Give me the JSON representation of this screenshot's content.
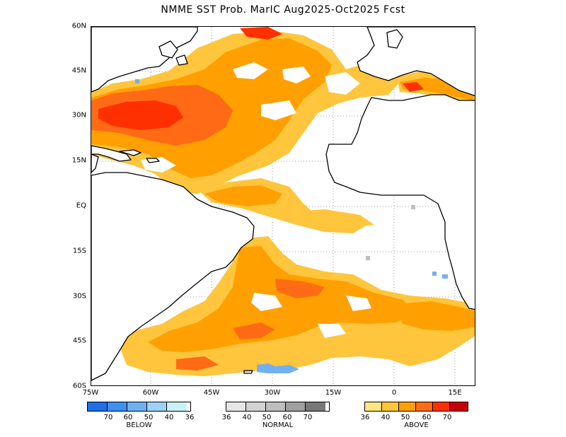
{
  "title": "NMME SST Prob. MarIC  Aug2025-Oct2025 Fcst",
  "y_axis_labels": [
    "60N",
    "45N",
    "30N",
    "15N",
    "EQ",
    "15S",
    "30S",
    "45S",
    "60S"
  ],
  "x_axis_labels": [
    "75W",
    "60W",
    "45W",
    "30W",
    "15W",
    "0",
    "15E"
  ],
  "legend": {
    "below": {
      "caption": "BELOW",
      "ticks": [
        "70",
        "60",
        "50",
        "40",
        "36"
      ],
      "colors": [
        "#1e6fe6",
        "#3d8ff0",
        "#6fb0f5",
        "#9fd0fa",
        "#c8f2f8"
      ]
    },
    "normal": {
      "caption": "NORMAL",
      "ticks": [
        "36",
        "40",
        "50",
        "60",
        "70"
      ],
      "colors": [
        "#e6e6e6",
        "#d2d2d2",
        "#bebebe",
        "#a0a0a0",
        "#787878"
      ]
    },
    "above": {
      "caption": "ABOVE",
      "ticks": [
        "36",
        "40",
        "50",
        "60",
        "70"
      ],
      "colors": [
        "#ffe680",
        "#ffc53c",
        "#ffa000",
        "#ff6a14",
        "#ff3000",
        "#c80000"
      ]
    }
  }
}
